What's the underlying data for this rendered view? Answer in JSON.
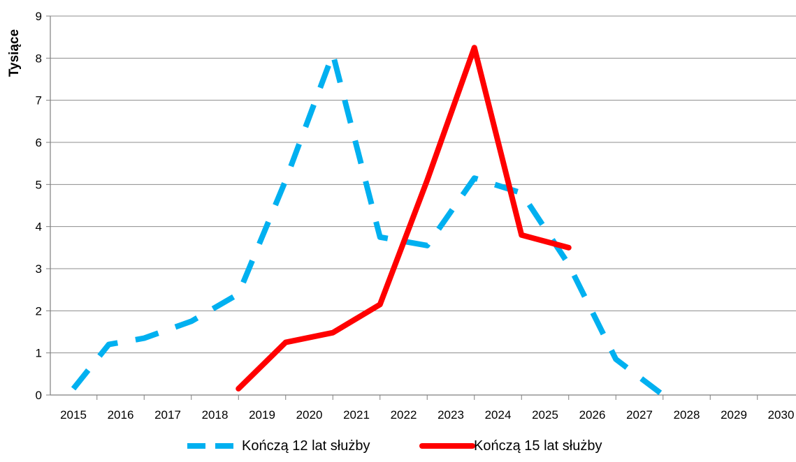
{
  "chart_data": {
    "type": "line",
    "title": "",
    "xlabel": "",
    "ylabel": "Tysiące",
    "categories": [
      "2015",
      "2016",
      "2017",
      "2018",
      "2019",
      "2020",
      "2021",
      "2022",
      "2023",
      "2024",
      "2025",
      "2026",
      "2027",
      "2028",
      "2029",
      "2030"
    ],
    "x_points": [
      2015.0,
      2015.5,
      2016.0,
      2016.5,
      2017.0,
      2017.5,
      2018.0,
      2018.5,
      2019.0,
      2019.5,
      2020.0,
      2020.5,
      2021.0,
      2021.5,
      2022.0,
      2022.5,
      2023.0,
      2023.5,
      2024.0,
      2024.5,
      2025.0,
      2025.5,
      2026.0,
      2026.5,
      2027.0,
      2027.5,
      2028.0,
      2028.5,
      2029.0,
      2029.5,
      2030.0
    ],
    "ylim": [
      0,
      9
    ],
    "yticks": [
      0,
      1,
      2,
      3,
      4,
      5,
      6,
      7,
      8,
      9
    ],
    "grid": true,
    "legend_position": "bottom",
    "series": [
      {
        "name": "Kończą 12 lat służby",
        "color": "#00b0f0",
        "style": "dashed",
        "x": [
          2015.0,
          2015.75,
          2016.5,
          2017.5,
          2018.5,
          2019.5,
          2020.5,
          2021.5,
          2022.5,
          2023.5,
          2024.5,
          2025.5,
          2026.5,
          2027.5
        ],
        "y": [
          0.15,
          1.2,
          1.35,
          1.75,
          2.4,
          5.1,
          8.1,
          3.75,
          3.55,
          5.15,
          4.8,
          3.1,
          0.85,
          0.0
        ]
      },
      {
        "name": "Kończą 15 lat służby",
        "color": "#ff0000",
        "style": "solid",
        "x": [
          2018.5,
          2019.5,
          2020.5,
          2021.5,
          2022.5,
          2023.5,
          2024.5,
          2025.5
        ],
        "y": [
          0.15,
          1.25,
          1.48,
          2.15,
          5.1,
          8.25,
          3.8,
          3.5
        ]
      }
    ]
  },
  "colors": {
    "grid": "#8c8c8c",
    "axis": "#7f7f7f"
  }
}
